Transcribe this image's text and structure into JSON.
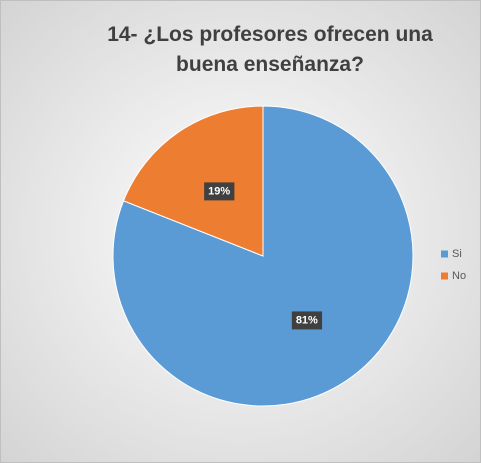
{
  "chart_data": {
    "type": "pie",
    "title": "14- ¿Los profesores ofrecen una buena enseñanza?",
    "categories": [
      "Si",
      "No"
    ],
    "values": [
      81,
      19
    ],
    "value_labels": [
      "81%",
      "19%"
    ],
    "colors": [
      "#5b9bd5",
      "#ed7d31"
    ],
    "legend": "right"
  }
}
